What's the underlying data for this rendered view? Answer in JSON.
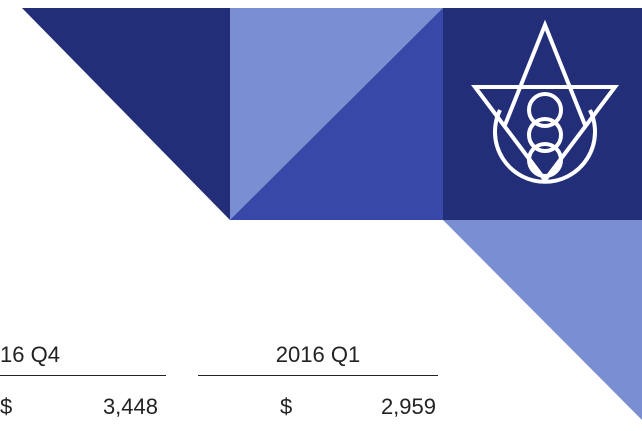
{
  "table": {
    "columns": [
      {
        "header": "16 Q4",
        "currency": "$",
        "value": "3,448"
      },
      {
        "header": "2016 Q1",
        "currency": "$",
        "value": "2,959"
      }
    ]
  }
}
